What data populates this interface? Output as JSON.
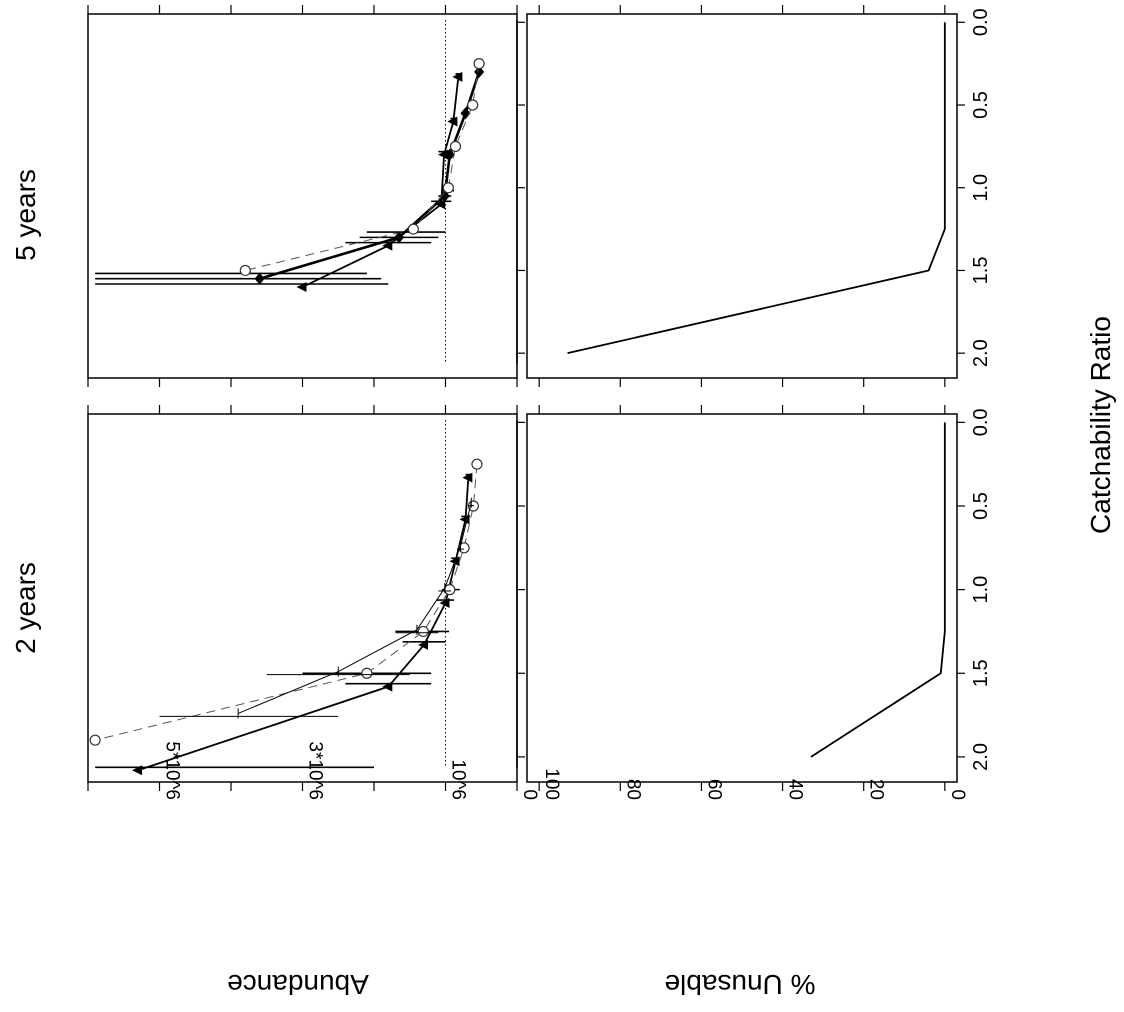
{
  "figure": {
    "row_labels": [
      "5 years",
      "2 years"
    ],
    "x_axis_title": "Catchability Ratio",
    "abundance_axis_title": "Abundance",
    "unusable_axis_title": "% Unusable"
  },
  "chart_data": [
    {
      "type": "line",
      "panel": "abundance-5-years",
      "title": "5 years",
      "xlabel": "Catchability Ratio",
      "ylabel": "Abundance",
      "xlim": [
        -0.05,
        2.15
      ],
      "ylim": [
        0,
        6000000
      ],
      "x_ticks": [
        0.0,
        0.5,
        1.0,
        1.5,
        2.0
      ],
      "y_ticks": [
        0,
        1000000,
        2000000,
        3000000,
        4000000,
        5000000,
        6000000
      ],
      "y_tick_labels": {
        "0": "0",
        "1000000": "10^6",
        "3000000": "3*10^6",
        "5000000": "5*10^6"
      },
      "reference_lines": {
        "true_abundance_dotted": 1000000,
        "zero_line": 0
      },
      "series": [
        {
          "style": "solid-triangle",
          "x": [
            0.33,
            0.6,
            0.8,
            1.1,
            1.35,
            1.6
          ],
          "y": [
            820000,
            890000,
            1020000,
            1060000,
            1800000,
            3000000
          ],
          "lo": [
            780000,
            860000,
            940000,
            920000,
            1200000,
            1800000
          ],
          "hi": [
            860000,
            930000,
            1100000,
            1200000,
            2400000,
            5900000
          ]
        },
        {
          "style": "solid-diamond",
          "x": [
            0.3,
            0.55,
            0.8,
            1.05,
            1.3,
            1.55
          ],
          "y": [
            530000,
            720000,
            940000,
            1010000,
            1650000,
            3600000
          ],
          "lo": [
            500000,
            660000,
            880000,
            920000,
            1100000,
            1900000
          ],
          "hi": [
            560000,
            780000,
            1000000,
            1100000,
            2200000,
            5900000
          ]
        },
        {
          "style": "dashed-circle",
          "x": [
            0.25,
            0.5,
            0.75,
            1.0,
            1.25,
            1.5
          ],
          "y": [
            530000,
            620000,
            860000,
            960000,
            1450000,
            3800000
          ],
          "lo": [
            500000,
            560000,
            800000,
            880000,
            1000000,
            2100000
          ],
          "hi": [
            560000,
            680000,
            920000,
            1050000,
            2100000,
            5900000
          ]
        }
      ]
    },
    {
      "type": "line",
      "panel": "abundance-2-years",
      "title": "2 years",
      "xlabel": "Catchability Ratio",
      "ylabel": "Abundance",
      "xlim": [
        -0.05,
        2.15
      ],
      "ylim": [
        0,
        6000000
      ],
      "x_ticks": [
        0.0,
        0.5,
        1.0,
        1.5,
        2.0
      ],
      "y_ticks": [
        0,
        1000000,
        2000000,
        3000000,
        4000000,
        5000000,
        6000000
      ],
      "y_tick_labels": {
        "0": "0",
        "1000000": "10^6",
        "3000000": "3*10^6",
        "5000000": "5*10^6"
      },
      "reference_lines": {
        "true_abundance_dotted": 1000000,
        "zero_line": 0
      },
      "series": [
        {
          "style": "solid-triangle",
          "x": [
            0.33,
            0.58,
            0.83,
            1.08,
            1.33,
            1.58,
            2.08
          ],
          "y": [
            680000,
            720000,
            860000,
            1000000,
            1300000,
            1800000,
            5300000
          ],
          "lo": [
            640000,
            660000,
            800000,
            880000,
            1000000,
            1200000,
            2000000
          ],
          "hi": [
            720000,
            780000,
            920000,
            1120000,
            1600000,
            2400000,
            5900000
          ]
        },
        {
          "style": "dashed-circle",
          "x": [
            0.25,
            0.5,
            0.75,
            1.0,
            1.25,
            1.5,
            1.9
          ],
          "y": [
            560000,
            610000,
            740000,
            940000,
            1310000,
            2100000,
            5900000
          ],
          "lo": [
            520000,
            560000,
            680000,
            800000,
            950000,
            1200000,
            5900000
          ],
          "hi": [
            600000,
            660000,
            800000,
            1050000,
            1700000,
            3000000,
            5900000
          ]
        },
        {
          "style": "thin-cross",
          "x": [
            0.48,
            0.74,
            0.99,
            1.24,
            1.49,
            1.74
          ],
          "y": [
            640000,
            790000,
            1010000,
            1400000,
            2500000,
            3900000
          ],
          "lo": [
            600000,
            740000,
            920000,
            1100000,
            1500000,
            2500000
          ],
          "hi": [
            680000,
            840000,
            1100000,
            1700000,
            3500000,
            5000000
          ]
        }
      ]
    },
    {
      "type": "line",
      "panel": "unusable-5-years",
      "title": "5 years",
      "xlabel": "Catchability Ratio",
      "ylabel": "% Unusable",
      "xlim": [
        -0.05,
        2.15
      ],
      "ylim": [
        -3,
        103
      ],
      "x_ticks": [
        0.0,
        0.5,
        1.0,
        1.5,
        2.0
      ],
      "y_ticks": [
        0,
        20,
        40,
        60,
        80,
        100
      ],
      "series": [
        {
          "style": "solid",
          "x": [
            0.0,
            0.25,
            0.5,
            0.75,
            1.0,
            1.25,
            1.5,
            2.0
          ],
          "y": [
            0,
            0,
            0,
            0,
            0,
            0,
            4,
            93
          ]
        }
      ]
    },
    {
      "type": "line",
      "panel": "unusable-2-years",
      "title": "2 years",
      "xlabel": "Catchability Ratio",
      "ylabel": "% Unusable",
      "xlim": [
        -0.05,
        2.15
      ],
      "ylim": [
        -3,
        103
      ],
      "x_ticks": [
        0.0,
        0.5,
        1.0,
        1.5,
        2.0
      ],
      "y_ticks": [
        0,
        20,
        40,
        60,
        80,
        100
      ],
      "series": [
        {
          "style": "solid",
          "x": [
            0.0,
            0.25,
            0.5,
            0.75,
            1.0,
            1.25,
            1.5,
            2.0
          ],
          "y": [
            0,
            0,
            0,
            0,
            0,
            0,
            1,
            33
          ]
        }
      ]
    }
  ]
}
